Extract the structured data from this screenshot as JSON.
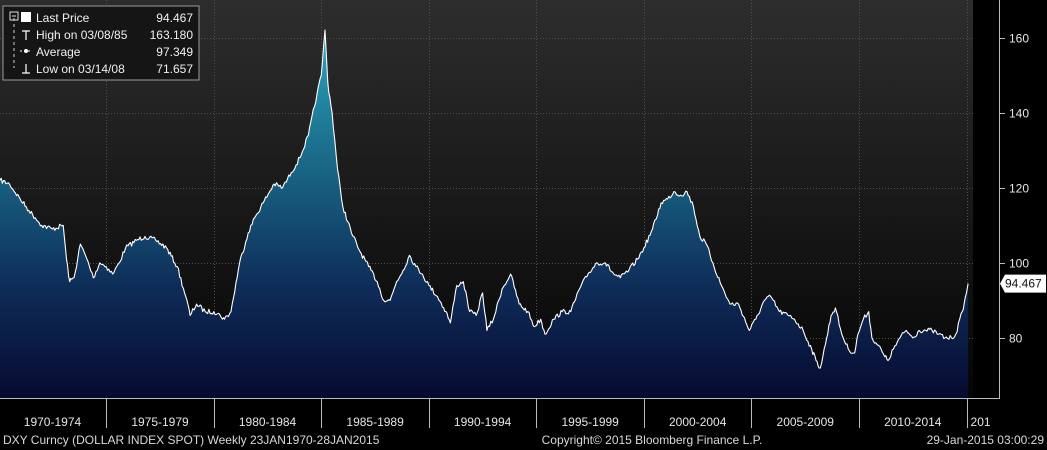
{
  "chart_data": {
    "type": "area",
    "ylim": [
      64,
      170
    ],
    "xlim": [
      1970.06,
      2015.3
    ],
    "y_ticks": [
      80,
      100,
      120,
      140,
      160
    ],
    "x_periods": [
      "1970-1974",
      "1975-1979",
      "1980-1984",
      "1985-1989",
      "1990-1994",
      "1995-1999",
      "2000-2004",
      "2005-2009",
      "2010-2014",
      "201"
    ],
    "x_period_starts": [
      1970,
      1975,
      1980,
      1985,
      1990,
      1995,
      2000,
      2005,
      2010,
      2015
    ],
    "grid": true,
    "legend_position": "top-left",
    "series": [
      {
        "name": "Last Price",
        "x": [
          1970.06,
          1970.5,
          1971.0,
          1971.4,
          1971.7,
          1972.0,
          1972.5,
          1973.0,
          1973.15,
          1973.3,
          1973.5,
          1973.8,
          1974.1,
          1974.4,
          1974.7,
          1975.0,
          1975.3,
          1975.6,
          1975.9,
          1976.4,
          1976.8,
          1977.3,
          1977.8,
          1978.3,
          1978.7,
          1978.9,
          1979.2,
          1979.6,
          1980.0,
          1980.3,
          1980.5,
          1980.8,
          1981.2,
          1981.6,
          1981.9,
          1982.3,
          1982.8,
          1983.2,
          1983.6,
          1984.0,
          1984.4,
          1984.8,
          1985.0,
          1985.17,
          1985.3,
          1985.5,
          1985.75,
          1986.0,
          1986.4,
          1986.8,
          1987.2,
          1987.6,
          1987.9,
          1988.2,
          1988.5,
          1988.8,
          1989.1,
          1989.4,
          1989.7,
          1990.0,
          1990.4,
          1990.8,
          1991.0,
          1991.3,
          1991.6,
          1991.9,
          1992.2,
          1992.5,
          1992.7,
          1993.0,
          1993.4,
          1993.8,
          1994.2,
          1994.6,
          1994.9,
          1995.2,
          1995.4,
          1995.8,
          1996.2,
          1996.6,
          1997.0,
          1997.4,
          1997.8,
          1998.2,
          1998.6,
          1998.9,
          1999.3,
          1999.7,
          2000.0,
          2000.4,
          2000.8,
          2001.1,
          2001.4,
          2001.7,
          2002.0,
          2002.3,
          2002.6,
          2002.9,
          2003.2,
          2003.6,
          2004.0,
          2004.4,
          2004.9,
          2005.2,
          2005.6,
          2005.9,
          2006.3,
          2006.7,
          2007.0,
          2007.4,
          2007.8,
          2008.0,
          2008.2,
          2008.5,
          2008.7,
          2008.9,
          2009.2,
          2009.5,
          2009.8,
          2009.95,
          2010.2,
          2010.45,
          2010.6,
          2010.9,
          2011.2,
          2011.35,
          2011.6,
          2011.9,
          2012.2,
          2012.5,
          2012.8,
          2013.1,
          2013.4,
          2013.7,
          2014.0,
          2014.3,
          2014.5,
          2014.8,
          2015.0,
          2015.07
        ],
        "values": [
          122,
          121,
          117,
          114,
          112,
          110,
          109,
          110,
          101,
          95,
          96,
          105,
          101,
          96,
          100,
          99,
          97,
          100,
          104,
          106,
          107,
          106,
          104,
          99,
          91,
          86,
          89,
          87,
          87,
          86,
          85,
          87,
          100,
          108,
          112,
          116,
          121,
          120,
          124,
          128,
          134,
          145,
          150,
          162,
          148,
          140,
          125,
          115,
          108,
          103,
          99,
          95,
          90,
          90,
          95,
          98,
          102,
          99,
          97,
          94,
          91,
          87,
          84,
          94,
          95,
          87,
          86,
          92,
          82,
          85,
          93,
          97,
          89,
          87,
          83,
          85,
          81,
          85,
          87,
          87,
          93,
          97,
          100,
          100,
          97,
          96,
          98,
          101,
          104,
          109,
          116,
          117,
          119,
          118,
          119,
          115,
          107,
          105,
          100,
          94,
          89,
          89,
          82,
          85,
          90,
          91,
          87,
          86,
          85,
          82,
          77,
          74,
          72,
          80,
          86,
          88,
          81,
          77,
          76,
          81,
          85,
          87,
          80,
          78,
          75,
          74,
          77,
          80,
          82,
          80,
          82,
          82,
          82,
          81,
          80,
          80,
          81,
          87,
          92,
          94.467
        ]
      }
    ],
    "legend": [
      {
        "label": "Last Price",
        "value": "94.467"
      },
      {
        "label": "High on 03/08/85",
        "value": "163.180"
      },
      {
        "label": "Average",
        "value": "97.349"
      },
      {
        "label": "Low on 03/14/08",
        "value": "71.657"
      }
    ],
    "last_price_label": "94.467",
    "last_price_value": 94.467
  },
  "footer": {
    "left": "DXY Curncy (DOLLAR INDEX SPOT)  Weekly 23JAN1970-28JAN2015",
    "center": "Copyright© 2015 Bloomberg Finance L.P.",
    "right": "29-Jan-2015 03:00:29"
  },
  "colors": {
    "background_top": "#2a2a2a",
    "background_bottom": "#000000",
    "area_top": "#1f8fa8",
    "area_bottom": "#0a0f3a",
    "line": "#ffffff",
    "grid": "#4a4a4a",
    "legend_bg": "#1a1a1a"
  }
}
